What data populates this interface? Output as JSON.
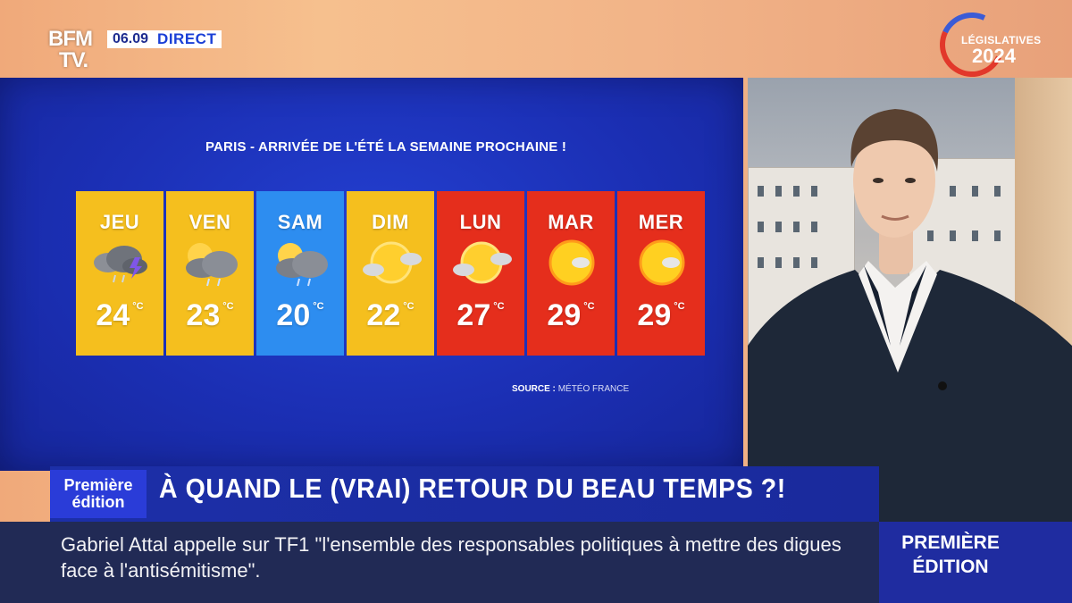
{
  "channel": {
    "logo_line1": "BFM",
    "logo_line2": "TV.",
    "time": "06.09",
    "live": "DIRECT"
  },
  "election_badge": {
    "line1": "LÉGISLATIVES",
    "line2": "2024"
  },
  "weather": {
    "headline": "PARIS - ARRIVÉE DE L'ÉTÉ LA SEMAINE PROCHAINE !",
    "unit": "°C",
    "days": [
      {
        "name": "JEU",
        "temp": "24",
        "color": "#f5bf1e",
        "icon": "storm-icon"
      },
      {
        "name": "VEN",
        "temp": "23",
        "color": "#f5bf1e",
        "icon": "rain-cloud-sun-icon"
      },
      {
        "name": "SAM",
        "temp": "20",
        "color": "#2d8df0",
        "icon": "rain-cloud-sun-icon"
      },
      {
        "name": "DIM",
        "temp": "22",
        "color": "#f5bf1e",
        "icon": "sun-clouds-icon"
      },
      {
        "name": "LUN",
        "temp": "27",
        "color": "#e52e1c",
        "icon": "sun-clouds-icon"
      },
      {
        "name": "MAR",
        "temp": "29",
        "color": "#e52e1c",
        "icon": "sun-small-cloud-icon"
      },
      {
        "name": "MER",
        "temp": "29",
        "color": "#e52e1c",
        "icon": "sun-small-cloud-icon"
      }
    ],
    "source_label": "SOURCE :",
    "source_value": "MÉTÉO FRANCE"
  },
  "banner": {
    "show_line1": "Première",
    "show_line2": "édition",
    "title": "À QUAND LE (VRAI) RETOUR DU BEAU TEMPS ?!"
  },
  "ticker": {
    "text": "Gabriel Attal appelle sur TF1 \"l'ensemble des responsables politiques à mettre des digues face à l'antisémitisme\"."
  },
  "program_badge": {
    "line1": "PREMIÈRE",
    "line2": "ÉDITION"
  }
}
